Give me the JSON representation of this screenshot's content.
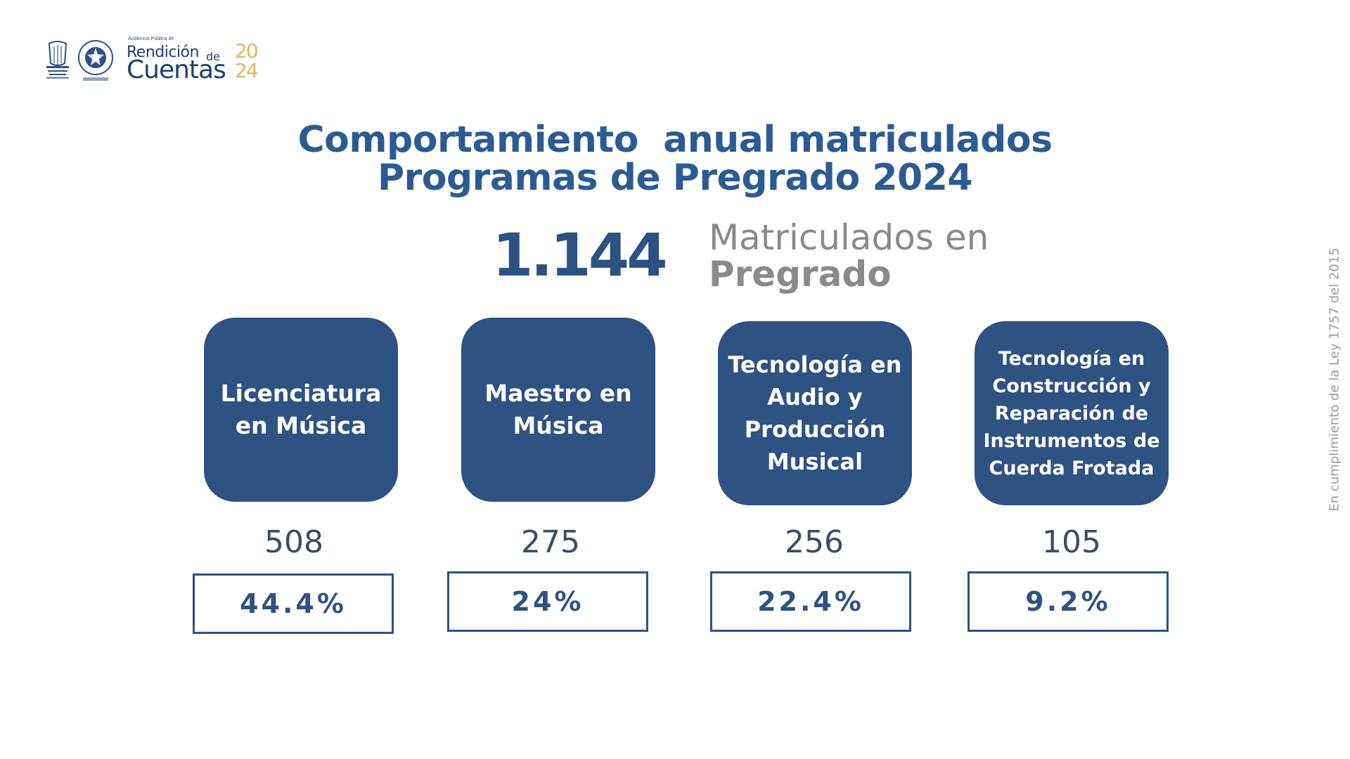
{
  "brand": {
    "pre": "Audiencia Pública de",
    "line1": "Rendición",
    "line2": "Cuentas",
    "de": "de",
    "year_top": "20",
    "year_bottom": "24"
  },
  "title": {
    "line1": "Comportamiento  anual matriculados",
    "line2": "Programas de Pregrado 2024"
  },
  "total": {
    "value": "1.144",
    "label_line1": "Matriculados en",
    "label_line2": "Pregrado"
  },
  "programs": [
    {
      "name": "Licenciatura\nen Música",
      "count": "508",
      "percent": "44.4%"
    },
    {
      "name": "Maestro en\nMúsica",
      "count": "275",
      "percent": "24%"
    },
    {
      "name": "Tecnología en\nAudio y\nProducción\nMusical",
      "count": "256",
      "percent": "22.4%"
    },
    {
      "name": "Tecnología en\nConstrucción y\nReparación de\nInstrumentos de\nCuerda Frotada",
      "count": "105",
      "percent": "9.2%"
    }
  ],
  "side_note": "En cumplimiento de la Ley 1757 del 2015",
  "colors": {
    "primary": "#2e5282",
    "title": "#2c5b94",
    "accent": "#e0b46a",
    "gray": "#8a8a8a"
  }
}
